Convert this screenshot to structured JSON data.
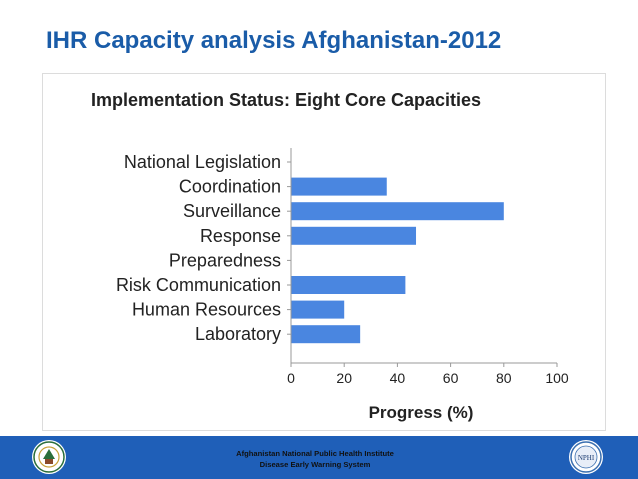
{
  "slide": {
    "title": "IHR Capacity analysis Afghanistan-2012"
  },
  "footer": {
    "line1": "Afghanistan National Public Health Institute",
    "line2": "Disease Early Warning System",
    "logo_right_text": "NPHI"
  },
  "colors": {
    "title": "#1a5ca8",
    "bar": "#4a86e0",
    "footer_bg": "#1f5fb8",
    "axis": "#999999"
  },
  "chart_data": {
    "type": "bar",
    "orientation": "horizontal",
    "title": "Implementation Status:  Eight Core Capacities",
    "xlabel": "Progress (%)",
    "ylabel": "",
    "xlim": [
      0,
      100
    ],
    "xticks": [
      "0",
      "20",
      "40",
      "60",
      "80",
      "100"
    ],
    "grid": false,
    "categories": [
      "National Legislation",
      "Coordination",
      "Surveillance",
      "Response",
      "Preparedness",
      "Risk Communication",
      "Human Resources",
      "Laboratory"
    ],
    "values": [
      0,
      36,
      80,
      47,
      0,
      43,
      20,
      26
    ]
  }
}
